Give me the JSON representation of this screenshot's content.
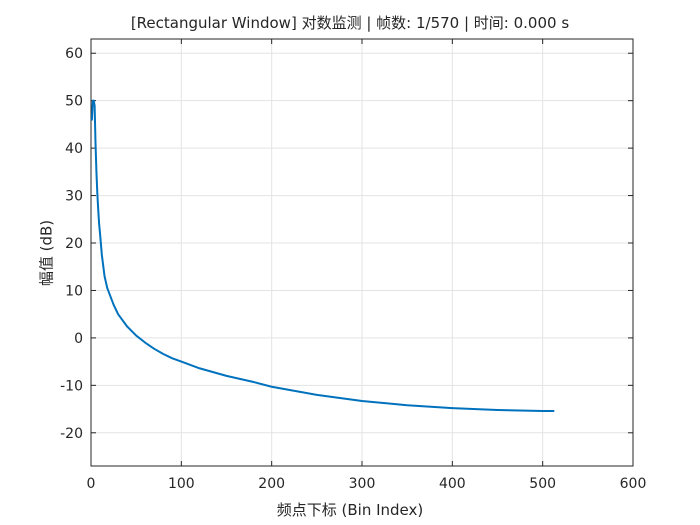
{
  "chart_data": {
    "type": "line",
    "title": "[Rectangular Window] 对数监测 | 帧数: 1/570 | 时间: 0.000 s",
    "xlabel": "频点下标 (Bin Index)",
    "ylabel": "幅值 (dB)",
    "xlim": [
      0,
      600
    ],
    "ylim": [
      -27,
      63
    ],
    "xticks": [
      0,
      100,
      200,
      300,
      400,
      500,
      600
    ],
    "yticks": [
      -20,
      -10,
      0,
      10,
      20,
      30,
      40,
      50,
      60
    ],
    "grid": true,
    "line_color": "#0072BD",
    "series": [
      {
        "x": [
          1,
          2,
          3,
          4,
          5,
          6,
          7,
          8,
          9,
          10,
          12,
          15,
          18,
          20,
          25,
          30,
          40,
          50,
          60,
          70,
          80,
          90,
          100,
          120,
          150,
          180,
          200,
          250,
          300,
          350,
          400,
          450,
          500,
          512
        ],
        "values": [
          46,
          50,
          50,
          49,
          41,
          35,
          30.5,
          27,
          24,
          22,
          17.5,
          13,
          10.5,
          9.5,
          7,
          5,
          2.4,
          0.5,
          -1,
          -2.3,
          -3.4,
          -4.3,
          -5,
          -6.4,
          -8,
          -9.3,
          -10.3,
          -12,
          -13.3,
          -14.2,
          -14.8,
          -15.2,
          -15.4,
          -15.4
        ]
      }
    ]
  }
}
